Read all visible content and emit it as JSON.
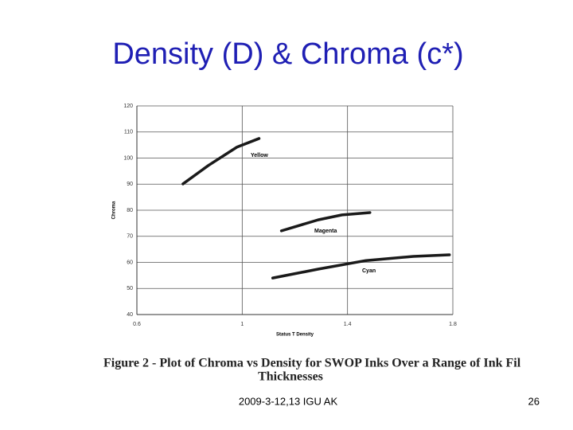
{
  "slide": {
    "title": "Density (D) & Chroma (c*)",
    "caption_lines": [
      "Figure 2 - Plot of Chroma vs Density for SWOP Inks Over a Range of Ink Fil",
      "Thicknesses"
    ],
    "footer": "2009-3-12,13 IGU AK",
    "page_number": "26"
  },
  "chart_data": {
    "type": "line",
    "x_label": "Status T Density",
    "y_label": "Chroma",
    "xlim": [
      0.6,
      1.8
    ],
    "xticks": [
      0.6,
      1.0,
      1.4,
      1.8
    ],
    "ylim": [
      40,
      120
    ],
    "yticks": [
      40,
      50,
      60,
      70,
      80,
      90,
      100,
      110,
      120
    ],
    "grid": true,
    "series": [
      {
        "name": "Yellow",
        "color": "#1a1a1a",
        "x": [
          0.775,
          0.872,
          0.98,
          1.064
        ],
        "values": [
          90.1,
          97.2,
          104.2,
          107.5
        ]
      },
      {
        "name": "Magenta",
        "color": "#1a1a1a",
        "x": [
          1.149,
          1.288,
          1.379,
          1.485
        ],
        "values": [
          72.1,
          76.3,
          78.2,
          79.1
        ]
      },
      {
        "name": "Cyan",
        "color": "#1a1a1a",
        "x": [
          1.116,
          1.288,
          1.47,
          1.65,
          1.787
        ],
        "values": [
          54.0,
          57.4,
          60.7,
          62.3,
          62.9
        ]
      }
    ]
  }
}
